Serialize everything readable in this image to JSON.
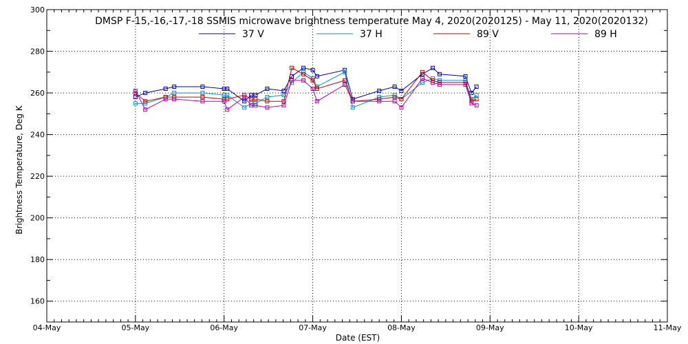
{
  "chart_data": {
    "type": "line",
    "title": "DMSP F-15,-16,-17,-18 SSMIS microwave brightness temperature May  4, 2020(2020125) - May 11, 2020(2020132)",
    "xlabel": "Date (EST)",
    "ylabel": "Brightness Temperature, Deg K",
    "xlim": [
      "2020-05-04T00:00",
      "2020-05-11T00:00"
    ],
    "ylim": [
      150,
      300
    ],
    "x_ticks": [
      "04-May",
      "05-May",
      "06-May",
      "07-May",
      "08-May",
      "09-May",
      "10-May",
      "11-May"
    ],
    "y_ticks": [
      160,
      180,
      200,
      220,
      240,
      260,
      280,
      300
    ],
    "grid": true,
    "legend_position": "top-center",
    "series": [
      {
        "name": "37 V",
        "color": "#0000b4",
        "x": [
          "2020-05-05T00:00",
          "2020-05-05T02:40",
          "2020-05-05T08:10",
          "2020-05-05T10:30",
          "2020-05-05T18:10",
          "2020-05-06T00:00",
          "2020-05-06T00:50",
          "2020-05-06T05:30",
          "2020-05-06T07:20",
          "2020-05-06T08:30",
          "2020-05-06T11:40",
          "2020-05-06T16:10",
          "2020-05-06T18:20",
          "2020-05-06T21:30",
          "2020-05-07T00:00",
          "2020-05-07T01:10",
          "2020-05-07T08:40",
          "2020-05-07T10:50",
          "2020-05-07T18:00",
          "2020-05-07T22:10",
          "2020-05-08T00:00",
          "2020-05-08T05:40",
          "2020-05-08T08:30",
          "2020-05-08T10:20",
          "2020-05-08T17:20",
          "2020-05-08T19:00",
          "2020-05-08T20:20"
        ],
        "y": [
          258,
          260,
          262,
          263,
          263,
          262,
          262,
          256,
          259,
          259,
          262,
          261,
          268,
          272,
          271,
          268,
          271,
          257,
          261,
          263,
          261,
          269,
          272,
          269,
          268,
          260,
          263
        ]
      },
      {
        "name": "37 H",
        "color": "#0096c8",
        "x": [
          "2020-05-05T00:00",
          "2020-05-05T02:40",
          "2020-05-05T08:10",
          "2020-05-05T10:30",
          "2020-05-05T18:10",
          "2020-05-06T00:00",
          "2020-05-06T00:50",
          "2020-05-06T05:30",
          "2020-05-06T07:20",
          "2020-05-06T08:30",
          "2020-05-06T11:40",
          "2020-05-06T16:10",
          "2020-05-06T18:20",
          "2020-05-06T21:30",
          "2020-05-07T00:00",
          "2020-05-07T01:10",
          "2020-05-07T08:40",
          "2020-05-07T10:50",
          "2020-05-07T18:00",
          "2020-05-07T22:10",
          "2020-05-08T00:00",
          "2020-05-08T05:40",
          "2020-05-08T08:30",
          "2020-05-08T10:20",
          "2020-05-08T17:20",
          "2020-05-08T19:00",
          "2020-05-08T20:20"
        ],
        "y": [
          255,
          255,
          258,
          260,
          260,
          259,
          259,
          253,
          255,
          255,
          258,
          259,
          265,
          270,
          267,
          263,
          270,
          253,
          258,
          259,
          257,
          265,
          267,
          266,
          266,
          257,
          259
        ]
      },
      {
        "name": "89 V",
        "color": "#c80000",
        "x": [
          "2020-05-05T00:00",
          "2020-05-05T02:40",
          "2020-05-05T08:10",
          "2020-05-05T10:30",
          "2020-05-05T18:10",
          "2020-05-06T00:00",
          "2020-05-06T00:50",
          "2020-05-06T05:30",
          "2020-05-06T07:20",
          "2020-05-06T08:30",
          "2020-05-06T11:40",
          "2020-05-06T16:10",
          "2020-05-06T18:20",
          "2020-05-06T21:30",
          "2020-05-07T00:00",
          "2020-05-07T01:10",
          "2020-05-07T08:40",
          "2020-05-07T10:50",
          "2020-05-07T18:00",
          "2020-05-07T22:10",
          "2020-05-08T00:00",
          "2020-05-08T05:40",
          "2020-05-08T08:30",
          "2020-05-08T10:20",
          "2020-05-08T17:20",
          "2020-05-08T19:00",
          "2020-05-08T20:20"
        ],
        "y": [
          260,
          256,
          258,
          258,
          258,
          257,
          257,
          259,
          257,
          257,
          256,
          256,
          272,
          269,
          266,
          262,
          266,
          256,
          257,
          258,
          257,
          270,
          266,
          265,
          265,
          256,
          257
        ]
      },
      {
        "name": "89 H",
        "color": "#b400b4",
        "x": [
          "2020-05-05T00:00",
          "2020-05-05T02:40",
          "2020-05-05T08:10",
          "2020-05-05T10:30",
          "2020-05-05T18:10",
          "2020-05-06T00:00",
          "2020-05-06T00:50",
          "2020-05-06T05:30",
          "2020-05-06T07:20",
          "2020-05-06T08:30",
          "2020-05-06T11:40",
          "2020-05-06T16:10",
          "2020-05-06T18:20",
          "2020-05-06T21:30",
          "2020-05-07T00:00",
          "2020-05-07T01:10",
          "2020-05-07T08:40",
          "2020-05-07T10:50",
          "2020-05-07T18:00",
          "2020-05-07T22:10",
          "2020-05-08T00:00",
          "2020-05-08T05:40",
          "2020-05-08T08:30",
          "2020-05-08T10:20",
          "2020-05-08T17:20",
          "2020-05-08T19:00",
          "2020-05-08T20:20"
        ],
        "y": [
          261,
          252,
          257,
          257,
          256,
          256,
          252,
          258,
          254,
          254,
          253,
          254,
          266,
          266,
          262,
          256,
          264,
          256,
          256,
          256,
          253,
          267,
          265,
          264,
          264,
          255,
          254
        ]
      }
    ]
  }
}
